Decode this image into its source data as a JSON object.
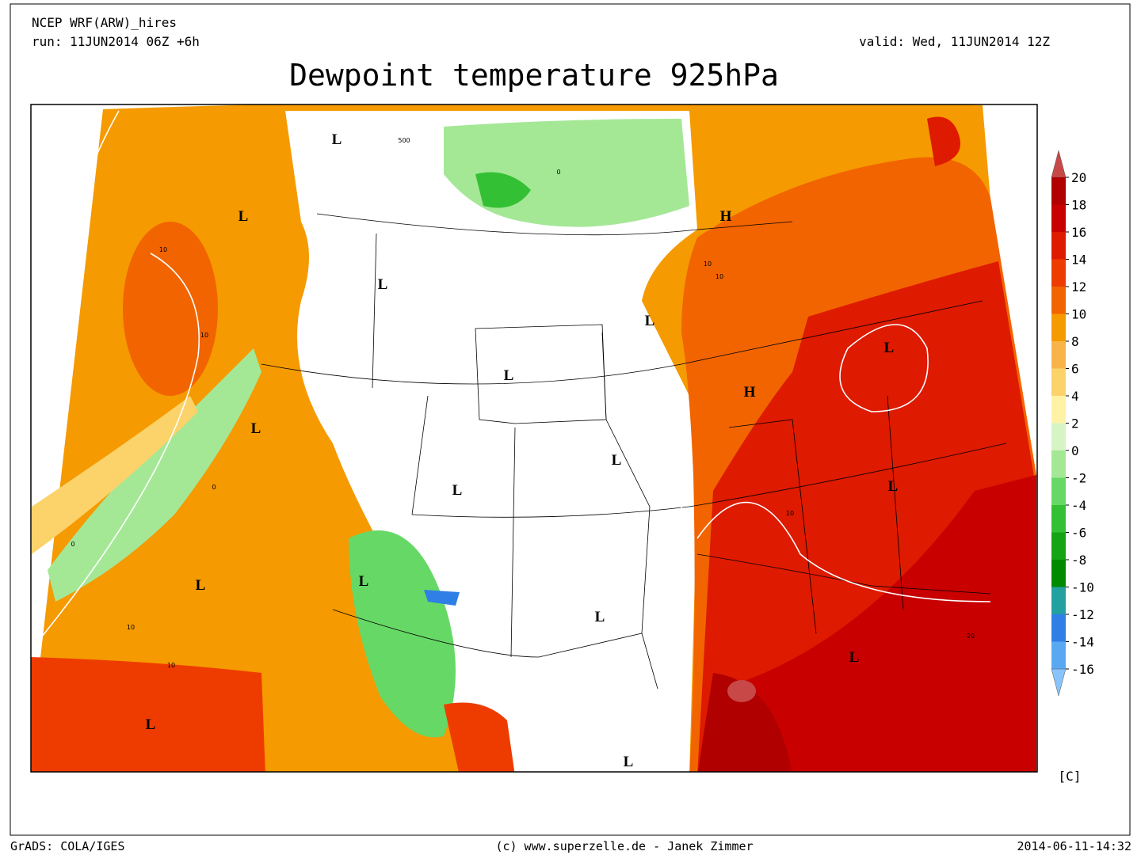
{
  "header": {
    "model": "NCEP WRF(ARW)_hires",
    "run": "run: 11JUN2014 06Z +6h",
    "valid": "valid: Wed, 11JUN2014 12Z"
  },
  "title": "Dewpoint temperature 925hPa",
  "colorbar": {
    "ticks": [
      20,
      18,
      16,
      14,
      12,
      10,
      8,
      6,
      4,
      2,
      0,
      -2,
      -4,
      -6,
      -8,
      -10,
      -12,
      -14,
      -16
    ],
    "colors": [
      "#b00000",
      "#c80000",
      "#de1a00",
      "#ee3c00",
      "#f26400",
      "#f59a00",
      "#f8b448",
      "#fbd36a",
      "#fff2a6",
      "#d6f4c4",
      "#a4e896",
      "#66d866",
      "#34c034",
      "#14a414",
      "#008a00",
      "#23a0a0",
      "#2f7fe6",
      "#5aa8f2"
    ],
    "over_color": "#c84848",
    "under_color": "#88c4fa",
    "unit": "[C]"
  },
  "pressure_labels": [
    "L",
    "L",
    "L",
    "L",
    "L",
    "L",
    "L",
    "L",
    "H",
    "H",
    "L",
    "L",
    "L",
    "L",
    "L",
    "L",
    "L",
    "L"
  ],
  "contour_labels": [
    "10",
    "10",
    "10",
    "10",
    "10",
    "10",
    "10",
    "0",
    "0",
    "0",
    "20",
    "500"
  ],
  "footer": {
    "left": "GrADS: COLA/IGES",
    "center": "(c) www.superzelle.de - Janek Zimmer",
    "right": "2014-06-11-14:32"
  }
}
